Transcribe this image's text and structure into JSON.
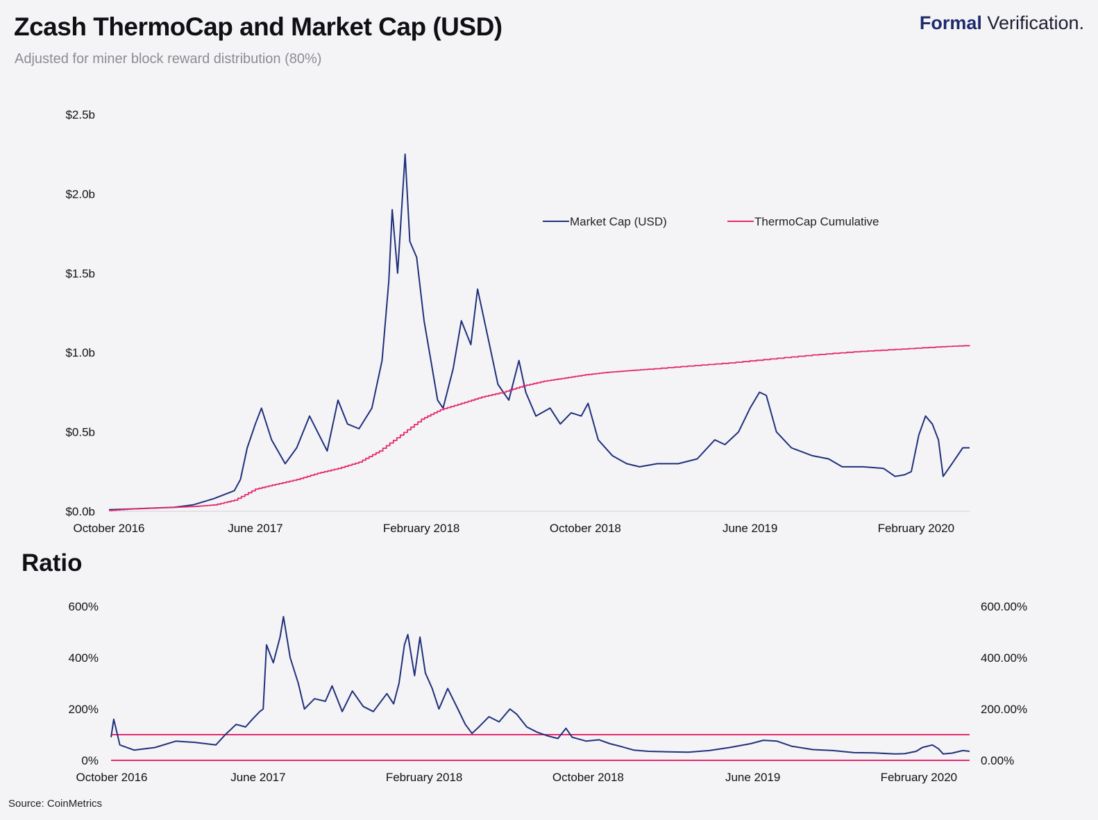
{
  "header": {
    "title": "Zcash ThermoCap and Market Cap (USD)",
    "subtitle": "Adjusted for miner block reward distribution (80%)",
    "brand_bold": "Formal",
    "brand_rest": " Verification."
  },
  "ratio_title": "Ratio",
  "source": "Source: CoinMetrics",
  "colors": {
    "market_cap": "#1f2f7a",
    "thermocap": "#e3286e",
    "grid": "#cfcfd6"
  },
  "chart_data": [
    {
      "type": "line",
      "title": "Zcash ThermoCap and Market Cap (USD)",
      "ylim": [
        0,
        2.5
      ],
      "y_unit": "billion USD",
      "y_ticks": [
        "$0.0b",
        "$0.5b",
        "$1.0b",
        "$1.5b",
        "$2.0b",
        "$2.5b"
      ],
      "x_ticks": [
        "October 2016",
        "June 2017",
        "February 2018",
        "October 2018",
        "June 2019",
        "February 2020"
      ],
      "x_tick_dates": [
        "2016-10-28",
        "2017-06-01",
        "2018-02-01",
        "2018-10-01",
        "2019-06-01",
        "2020-02-01"
      ],
      "xlim": [
        "2016-10-28",
        "2020-04-20"
      ],
      "legend": [
        "Market Cap (USD)",
        "ThermoCap Cumulative"
      ],
      "legend_position": "top-right",
      "series": [
        {
          "name": "Market Cap (USD)",
          "points": [
            [
              "2016-10-28",
              0.01
            ],
            [
              "2016-12-01",
              0.015
            ],
            [
              "2017-01-01",
              0.02
            ],
            [
              "2017-02-01",
              0.025
            ],
            [
              "2017-03-01",
              0.04
            ],
            [
              "2017-04-01",
              0.08
            ],
            [
              "2017-05-01",
              0.13
            ],
            [
              "2017-05-10",
              0.2
            ],
            [
              "2017-05-20",
              0.4
            ],
            [
              "2017-06-01",
              0.55
            ],
            [
              "2017-06-10",
              0.65
            ],
            [
              "2017-06-25",
              0.45
            ],
            [
              "2017-07-15",
              0.3
            ],
            [
              "2017-08-01",
              0.4
            ],
            [
              "2017-08-20",
              0.6
            ],
            [
              "2017-09-15",
              0.38
            ],
            [
              "2017-10-01",
              0.7
            ],
            [
              "2017-10-15",
              0.55
            ],
            [
              "2017-11-01",
              0.52
            ],
            [
              "2017-11-20",
              0.65
            ],
            [
              "2017-12-05",
              0.95
            ],
            [
              "2017-12-15",
              1.45
            ],
            [
              "2017-12-20",
              1.9
            ],
            [
              "2017-12-28",
              1.5
            ],
            [
              "2018-01-08",
              2.25
            ],
            [
              "2018-01-15",
              1.7
            ],
            [
              "2018-01-25",
              1.6
            ],
            [
              "2018-02-05",
              1.2
            ],
            [
              "2018-02-15",
              0.95
            ],
            [
              "2018-02-25",
              0.7
            ],
            [
              "2018-03-05",
              0.65
            ],
            [
              "2018-03-20",
              0.9
            ],
            [
              "2018-04-01",
              1.2
            ],
            [
              "2018-04-15",
              1.05
            ],
            [
              "2018-04-25",
              1.4
            ],
            [
              "2018-05-10",
              1.1
            ],
            [
              "2018-05-25",
              0.8
            ],
            [
              "2018-06-10",
              0.7
            ],
            [
              "2018-06-25",
              0.95
            ],
            [
              "2018-07-05",
              0.75
            ],
            [
              "2018-07-20",
              0.6
            ],
            [
              "2018-08-10",
              0.65
            ],
            [
              "2018-08-25",
              0.55
            ],
            [
              "2018-09-10",
              0.62
            ],
            [
              "2018-09-25",
              0.6
            ],
            [
              "2018-10-05",
              0.68
            ],
            [
              "2018-10-20",
              0.45
            ],
            [
              "2018-11-10",
              0.35
            ],
            [
              "2018-12-01",
              0.3
            ],
            [
              "2018-12-20",
              0.28
            ],
            [
              "2019-01-15",
              0.3
            ],
            [
              "2019-02-15",
              0.3
            ],
            [
              "2019-03-15",
              0.33
            ],
            [
              "2019-04-10",
              0.45
            ],
            [
              "2019-04-25",
              0.42
            ],
            [
              "2019-05-15",
              0.5
            ],
            [
              "2019-06-01",
              0.65
            ],
            [
              "2019-06-15",
              0.75
            ],
            [
              "2019-06-25",
              0.73
            ],
            [
              "2019-07-10",
              0.5
            ],
            [
              "2019-08-01",
              0.4
            ],
            [
              "2019-09-01",
              0.35
            ],
            [
              "2019-09-25",
              0.33
            ],
            [
              "2019-10-15",
              0.28
            ],
            [
              "2019-11-15",
              0.28
            ],
            [
              "2019-12-15",
              0.27
            ],
            [
              "2020-01-01",
              0.22
            ],
            [
              "2020-01-15",
              0.23
            ],
            [
              "2020-01-25",
              0.25
            ],
            [
              "2020-02-05",
              0.48
            ],
            [
              "2020-02-15",
              0.6
            ],
            [
              "2020-02-25",
              0.55
            ],
            [
              "2020-03-05",
              0.45
            ],
            [
              "2020-03-12",
              0.22
            ],
            [
              "2020-03-25",
              0.3
            ],
            [
              "2020-04-10",
              0.4
            ],
            [
              "2020-04-20",
              0.4
            ]
          ]
        },
        {
          "name": "ThermoCap Cumulative",
          "points": [
            [
              "2016-10-28",
              0.005
            ],
            [
              "2016-12-01",
              0.015
            ],
            [
              "2017-01-01",
              0.02
            ],
            [
              "2017-02-01",
              0.025
            ],
            [
              "2017-03-01",
              0.03
            ],
            [
              "2017-04-01",
              0.04
            ],
            [
              "2017-05-01",
              0.07
            ],
            [
              "2017-06-01",
              0.14
            ],
            [
              "2017-07-01",
              0.17
            ],
            [
              "2017-08-01",
              0.2
            ],
            [
              "2017-09-01",
              0.24
            ],
            [
              "2017-10-01",
              0.27
            ],
            [
              "2017-11-01",
              0.31
            ],
            [
              "2017-12-01",
              0.38
            ],
            [
              "2018-01-01",
              0.48
            ],
            [
              "2018-02-01",
              0.58
            ],
            [
              "2018-03-01",
              0.64
            ],
            [
              "2018-04-01",
              0.68
            ],
            [
              "2018-05-01",
              0.72
            ],
            [
              "2018-06-01",
              0.75
            ],
            [
              "2018-07-01",
              0.79
            ],
            [
              "2018-08-01",
              0.82
            ],
            [
              "2018-09-01",
              0.84
            ],
            [
              "2018-10-01",
              0.86
            ],
            [
              "2018-11-01",
              0.875
            ],
            [
              "2018-12-01",
              0.885
            ],
            [
              "2019-01-01",
              0.895
            ],
            [
              "2019-03-01",
              0.915
            ],
            [
              "2019-05-01",
              0.935
            ],
            [
              "2019-07-01",
              0.96
            ],
            [
              "2019-09-01",
              0.985
            ],
            [
              "2019-11-01",
              1.005
            ],
            [
              "2020-01-01",
              1.02
            ],
            [
              "2020-03-01",
              1.035
            ],
            [
              "2020-04-20",
              1.045
            ]
          ]
        }
      ]
    },
    {
      "type": "line",
      "title": "Ratio",
      "ylim": [
        0,
        600
      ],
      "y_unit": "percent",
      "y_ticks_left": [
        "0%",
        "200%",
        "400%",
        "600%"
      ],
      "y_ticks_right": [
        "0.00%",
        "200.00%",
        "400.00%",
        "600.00%"
      ],
      "x_ticks": [
        "October 2016",
        "June 2017",
        "February 2018",
        "October 2018",
        "June 2019",
        "February 2020"
      ],
      "x_tick_dates": [
        "2016-10-28",
        "2017-06-01",
        "2018-02-01",
        "2018-10-01",
        "2019-06-01",
        "2020-02-01"
      ],
      "xlim": [
        "2016-10-28",
        "2020-04-20"
      ],
      "reference_lines": [
        0,
        100
      ],
      "series": [
        {
          "points": [
            [
              "2016-10-28",
              90
            ],
            [
              "2016-11-01",
              160
            ],
            [
              "2016-11-10",
              60
            ],
            [
              "2016-12-01",
              40
            ],
            [
              "2017-01-01",
              50
            ],
            [
              "2017-02-01",
              75
            ],
            [
              "2017-03-01",
              70
            ],
            [
              "2017-04-01",
              60
            ],
            [
              "2017-04-15",
              100
            ],
            [
              "2017-05-01",
              140
            ],
            [
              "2017-05-15",
              130
            ],
            [
              "2017-05-25",
              160
            ],
            [
              "2017-06-05",
              190
            ],
            [
              "2017-06-10",
              200
            ],
            [
              "2017-06-15",
              450
            ],
            [
              "2017-06-25",
              380
            ],
            [
              "2017-07-05",
              480
            ],
            [
              "2017-07-10",
              560
            ],
            [
              "2017-07-20",
              400
            ],
            [
              "2017-08-01",
              300
            ],
            [
              "2017-08-10",
              200
            ],
            [
              "2017-08-25",
              240
            ],
            [
              "2017-09-10",
              230
            ],
            [
              "2017-09-20",
              290
            ],
            [
              "2017-10-05",
              190
            ],
            [
              "2017-10-20",
              270
            ],
            [
              "2017-11-05",
              210
            ],
            [
              "2017-11-20",
              190
            ],
            [
              "2017-12-10",
              260
            ],
            [
              "2017-12-20",
              220
            ],
            [
              "2017-12-28",
              300
            ],
            [
              "2018-01-05",
              450
            ],
            [
              "2018-01-10",
              490
            ],
            [
              "2018-01-20",
              330
            ],
            [
              "2018-01-28",
              480
            ],
            [
              "2018-02-05",
              340
            ],
            [
              "2018-02-15",
              280
            ],
            [
              "2018-02-25",
              200
            ],
            [
              "2018-03-10",
              280
            ],
            [
              "2018-03-25",
              200
            ],
            [
              "2018-04-05",
              140
            ],
            [
              "2018-04-15",
              105
            ],
            [
              "2018-04-25",
              130
            ],
            [
              "2018-05-10",
              170
            ],
            [
              "2018-05-25",
              150
            ],
            [
              "2018-06-10",
              200
            ],
            [
              "2018-06-20",
              180
            ],
            [
              "2018-07-05",
              130
            ],
            [
              "2018-07-20",
              110
            ],
            [
              "2018-08-05",
              95
            ],
            [
              "2018-08-20",
              85
            ],
            [
              "2018-09-01",
              125
            ],
            [
              "2018-09-10",
              90
            ],
            [
              "2018-10-01",
              75
            ],
            [
              "2018-10-20",
              80
            ],
            [
              "2018-11-05",
              65
            ],
            [
              "2018-11-20",
              55
            ],
            [
              "2018-12-10",
              40
            ],
            [
              "2019-01-01",
              35
            ],
            [
              "2019-02-01",
              33
            ],
            [
              "2019-03-01",
              32
            ],
            [
              "2019-04-01",
              38
            ],
            [
              "2019-05-01",
              50
            ],
            [
              "2019-06-01",
              65
            ],
            [
              "2019-06-20",
              78
            ],
            [
              "2019-07-10",
              75
            ],
            [
              "2019-08-01",
              55
            ],
            [
              "2019-09-01",
              42
            ],
            [
              "2019-10-01",
              38
            ],
            [
              "2019-11-01",
              30
            ],
            [
              "2019-12-01",
              29
            ],
            [
              "2020-01-01",
              25
            ],
            [
              "2020-01-15",
              26
            ],
            [
              "2020-02-01",
              35
            ],
            [
              "2020-02-10",
              50
            ],
            [
              "2020-02-25",
              60
            ],
            [
              "2020-03-05",
              45
            ],
            [
              "2020-03-12",
              25
            ],
            [
              "2020-03-25",
              28
            ],
            [
              "2020-04-10",
              38
            ],
            [
              "2020-04-20",
              35
            ]
          ]
        }
      ]
    }
  ]
}
